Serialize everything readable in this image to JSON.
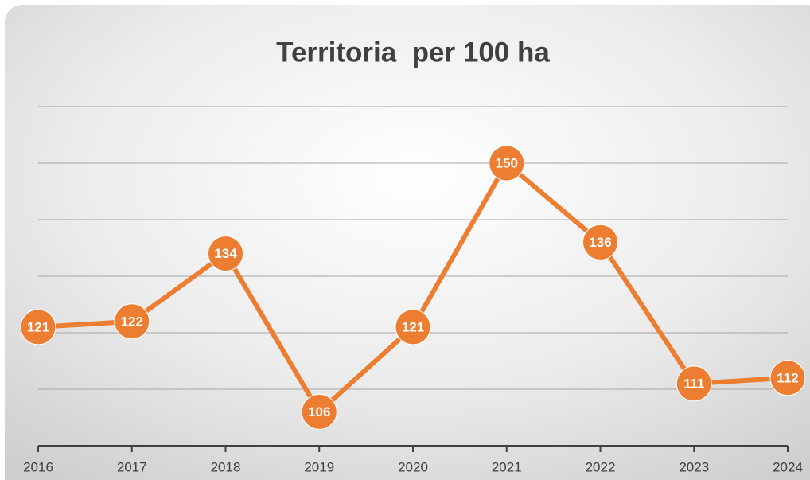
{
  "chart_data": {
    "type": "line",
    "title": "Territoria  per 100 ha",
    "categories": [
      "2016",
      "2017",
      "2018",
      "2019",
      "2020",
      "2021",
      "2022",
      "2023",
      "2024"
    ],
    "values": [
      121,
      122,
      134,
      106,
      121,
      150,
      136,
      111,
      112
    ],
    "color": "#ed7d31",
    "ylim": [
      100,
      160
    ],
    "yticks": [
      110,
      120,
      130,
      140,
      150,
      160
    ],
    "grid": true
  }
}
